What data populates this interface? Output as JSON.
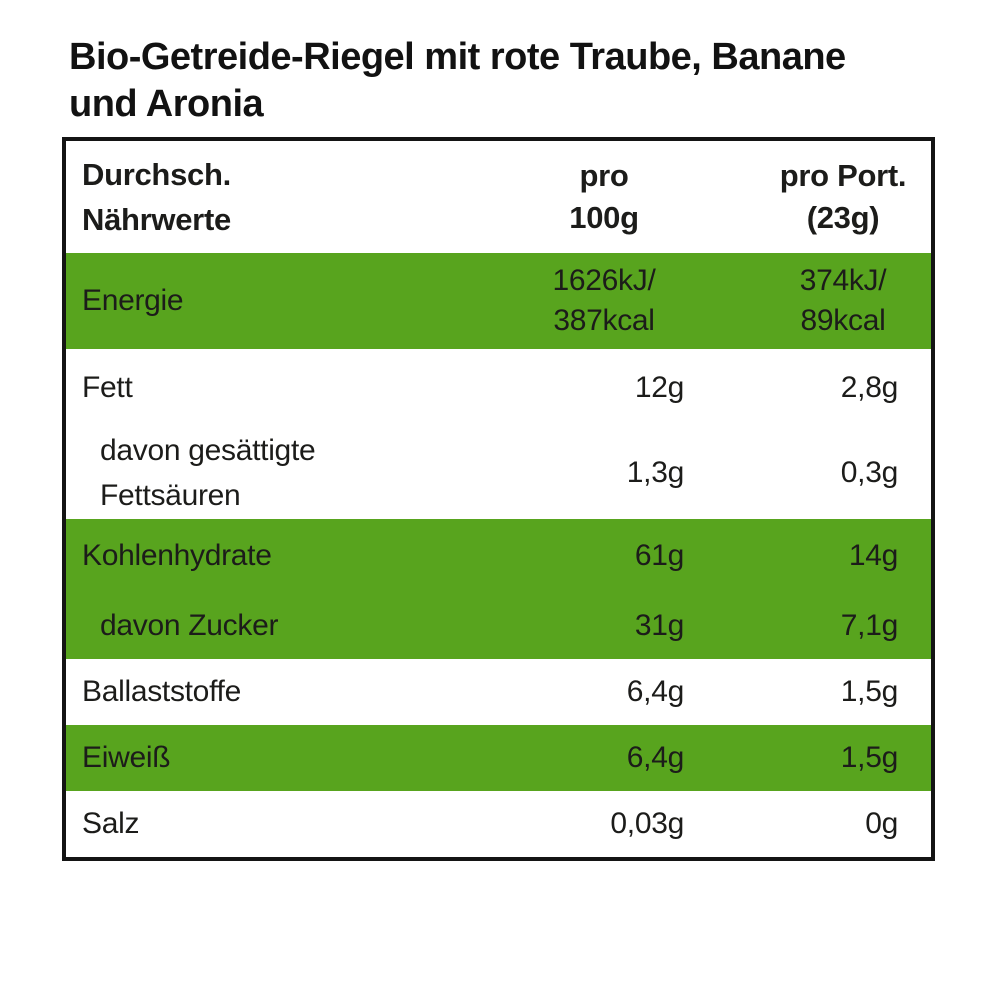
{
  "title": {
    "lines": [
      "Bio-Getreide-Riegel mit rote Traube, Banane",
      "und Aronia"
    ]
  },
  "colors": {
    "green": "#58a41e",
    "border": "#141414",
    "text": "#1c1c1a",
    "page-bg": "#ffffff"
  },
  "table": {
    "header": {
      "name_col_lines": [
        "Durchsch.",
        "Nährwerte"
      ],
      "per100g_col_lines": [
        "pro",
        "100g"
      ],
      "portion_col_lines": [
        "pro Port.",
        "(23g)"
      ]
    },
    "rows": {
      "energie": {
        "label": "Energie",
        "per100g_lines": [
          "1626kJ/",
          "387kcal"
        ],
        "portion_lines": [
          "374kJ/",
          "89kcal"
        ]
      },
      "fett": {
        "label": "Fett",
        "per100g": "12g",
        "portion": "2,8g"
      },
      "gesaettigt": {
        "label_lines": [
          "davon gesättigte",
          "Fettsäuren"
        ],
        "per100g": "1,3g",
        "portion": "0,3g"
      },
      "kohlenhydrate": {
        "label": "Kohlenhydrate",
        "per100g": "61g",
        "portion": "14g"
      },
      "zucker": {
        "label": "davon Zucker",
        "per100g": "31g",
        "portion": "7,1g"
      },
      "ballaststoffe": {
        "label": "Ballaststoffe",
        "per100g": "6,4g",
        "portion": "1,5g"
      },
      "eiweiss": {
        "label": "Eiweiß",
        "per100g": "6,4g",
        "portion": "1,5g"
      },
      "salz": {
        "label": "Salz",
        "per100g": "0,03g",
        "portion": "0g"
      }
    }
  }
}
